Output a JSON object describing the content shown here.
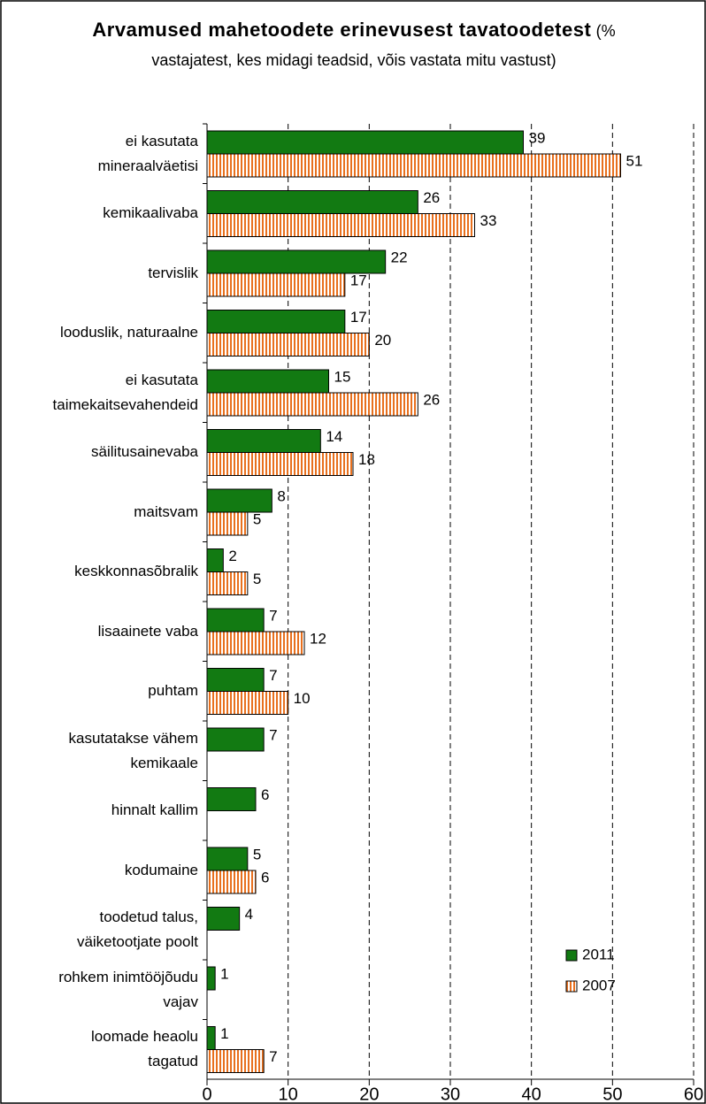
{
  "chart_data": {
    "type": "bar",
    "orientation": "horizontal",
    "title": "Arvamused mahetoodete erinevusest tavatoodetest",
    "subtitle": "(% vastajatest, kes midagi teadsid, võis vastata mitu vastust)",
    "categories": [
      "ei kasutata\nmineraalväetisi",
      "kemikaalivaba",
      "tervislik",
      "looduslik, naturaalne",
      "ei kasutata\ntaimekaitsevahendeid",
      "säilitusainevaba",
      "maitsvam",
      "keskkonnasõbralik",
      "lisaainete vaba",
      "puhtam",
      "kasutatakse vähem\nkemikaale",
      "hinnalt kallim",
      "kodumaine",
      "toodetud talus,\nväiketootjate poolt",
      "rohkem inimtööjõudu\nvajav",
      "loomade heaolu\ntagatud"
    ],
    "series": [
      {
        "name": "2011",
        "color": "#127a12",
        "values": [
          39,
          26,
          22,
          17,
          15,
          14,
          8,
          2,
          7,
          7,
          7,
          6,
          5,
          4,
          1,
          1
        ]
      },
      {
        "name": "2007",
        "color": "#e8701e",
        "values": [
          51,
          33,
          17,
          20,
          26,
          18,
          5,
          5,
          12,
          10,
          null,
          null,
          6,
          null,
          null,
          7
        ]
      }
    ],
    "xlim": [
      0,
      60
    ],
    "xticks": [
      0,
      10,
      20,
      30,
      40,
      50,
      60
    ],
    "grid": true,
    "legend": "lower right"
  }
}
